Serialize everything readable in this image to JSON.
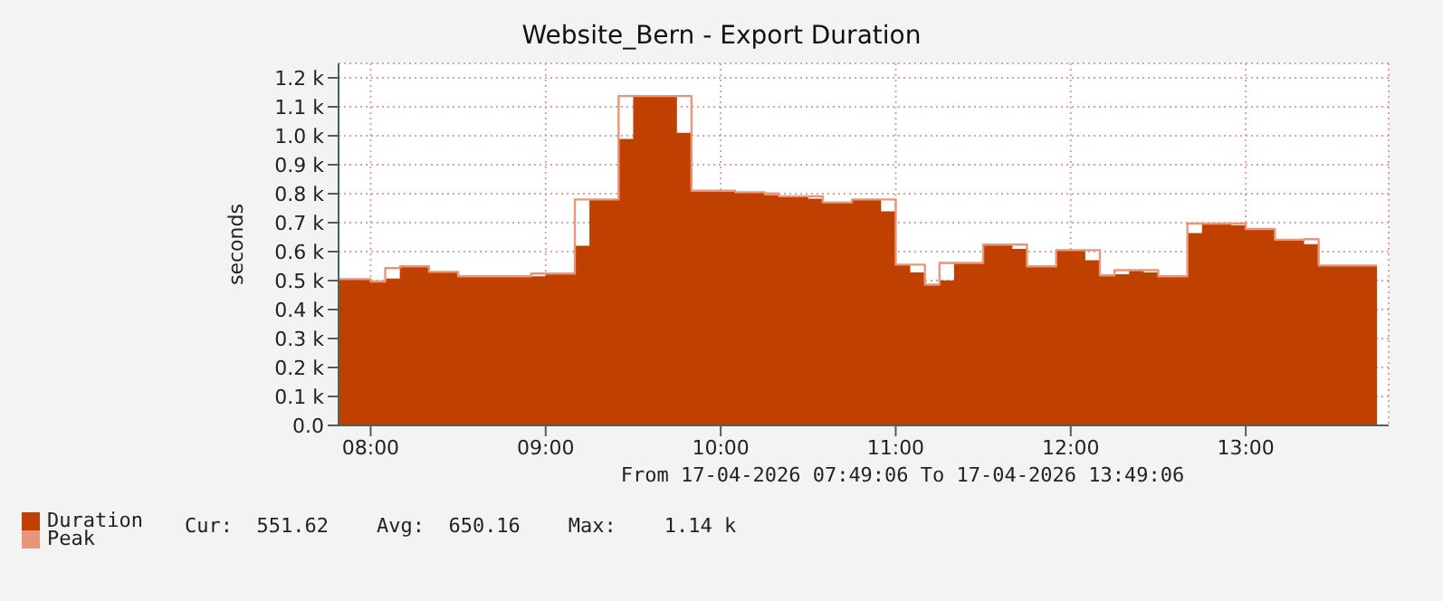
{
  "chart_data": {
    "type": "area",
    "title": "Website_Bern - Export Duration",
    "ylabel": "seconds",
    "annotations": [
      "From 17-04-2026 07:49:06 To 17-04-2026 13:49:06",
      "Cur:  551.62    Avg:  650.16    Max:    1.14 k"
    ],
    "x": [
      "2026-04-17T07:49",
      "2026-04-17T08:00",
      "2026-04-17T08:05",
      "2026-04-17T08:10",
      "2026-04-17T08:15",
      "2026-04-17T08:20",
      "2026-04-17T08:25",
      "2026-04-17T08:30",
      "2026-04-17T08:35",
      "2026-04-17T08:40",
      "2026-04-17T08:45",
      "2026-04-17T08:50",
      "2026-04-17T08:55",
      "2026-04-17T09:00",
      "2026-04-17T09:05",
      "2026-04-17T09:10",
      "2026-04-17T09:15",
      "2026-04-17T09:20",
      "2026-04-17T09:25",
      "2026-04-17T09:30",
      "2026-04-17T09:35",
      "2026-04-17T09:40",
      "2026-04-17T09:45",
      "2026-04-17T09:50",
      "2026-04-17T09:55",
      "2026-04-17T10:00",
      "2026-04-17T10:05",
      "2026-04-17T10:10",
      "2026-04-17T10:15",
      "2026-04-17T10:20",
      "2026-04-17T10:25",
      "2026-04-17T10:30",
      "2026-04-17T10:35",
      "2026-04-17T10:40",
      "2026-04-17T10:45",
      "2026-04-17T10:50",
      "2026-04-17T10:55",
      "2026-04-17T11:00",
      "2026-04-17T11:05",
      "2026-04-17T11:10",
      "2026-04-17T11:15",
      "2026-04-17T11:20",
      "2026-04-17T11:25",
      "2026-04-17T11:30",
      "2026-04-17T11:35",
      "2026-04-17T11:40",
      "2026-04-17T11:45",
      "2026-04-17T11:50",
      "2026-04-17T11:55",
      "2026-04-17T12:00",
      "2026-04-17T12:05",
      "2026-04-17T12:10",
      "2026-04-17T12:15",
      "2026-04-17T12:20",
      "2026-04-17T12:25",
      "2026-04-17T12:30",
      "2026-04-17T12:35",
      "2026-04-17T12:40",
      "2026-04-17T12:45",
      "2026-04-17T12:50",
      "2026-04-17T12:55",
      "2026-04-17T13:00",
      "2026-04-17T13:05",
      "2026-04-17T13:10",
      "2026-04-17T13:15",
      "2026-04-17T13:20",
      "2026-04-17T13:25",
      "2026-04-17T13:30",
      "2026-04-17T13:35",
      "2026-04-17T13:40",
      "2026-04-17T13:45"
    ],
    "series": [
      {
        "name": "Duration",
        "color": "#c04000",
        "values": [
          503,
          497,
          507,
          549,
          549,
          530,
          530,
          515,
          515,
          515,
          515,
          515,
          515,
          524,
          524,
          620,
          780,
          780,
          989,
          1135,
          1135,
          1135,
          1010,
          810,
          810,
          810,
          803,
          803,
          795,
          791,
          791,
          783,
          770,
          770,
          778,
          778,
          739,
          555,
          528,
          486,
          501,
          561,
          561,
          624,
          624,
          609,
          549,
          549,
          605,
          605,
          570,
          518,
          522,
          534,
          528,
          515,
          515,
          664,
          697,
          697,
          691,
          678,
          678,
          641,
          641,
          626,
          552,
          552,
          552,
          552,
          552
        ]
      },
      {
        "name": "Peak",
        "type": "step",
        "color": "#e8957a",
        "values": [
          505,
          497,
          543,
          549,
          549,
          530,
          530,
          515,
          515,
          515,
          515,
          515,
          524,
          524,
          524,
          780,
          780,
          780,
          1137,
          1137,
          1137,
          1137,
          1137,
          810,
          810,
          810,
          805,
          805,
          801,
          791,
          791,
          791,
          770,
          770,
          780,
          780,
          780,
          555,
          555,
          486,
          561,
          561,
          561,
          624,
          624,
          624,
          549,
          549,
          605,
          605,
          605,
          518,
          536,
          536,
          536,
          515,
          515,
          697,
          697,
          697,
          697,
          678,
          678,
          641,
          641,
          643,
          552,
          552,
          552,
          552,
          552
        ]
      }
    ],
    "xlim": [
      "2026-04-17T07:49",
      "2026-04-17T13:49"
    ],
    "xticks": [
      {
        "value": "2026-04-17T08:00",
        "label": "08:00"
      },
      {
        "value": "2026-04-17T09:00",
        "label": "09:00"
      },
      {
        "value": "2026-04-17T10:00",
        "label": "10:00"
      },
      {
        "value": "2026-04-17T11:00",
        "label": "11:00"
      },
      {
        "value": "2026-04-17T12:00",
        "label": "12:00"
      },
      {
        "value": "2026-04-17T13:00",
        "label": "13:00"
      }
    ],
    "ylim": [
      0,
      1250
    ],
    "yticks": [
      {
        "value": 0,
        "label": "0.0"
      },
      {
        "value": 100,
        "label": "0.1 k"
      },
      {
        "value": 200,
        "label": "0.2 k"
      },
      {
        "value": 300,
        "label": "0.3 k"
      },
      {
        "value": 400,
        "label": "0.4 k"
      },
      {
        "value": 500,
        "label": "0.5 k"
      },
      {
        "value": 600,
        "label": "0.6 k"
      },
      {
        "value": 700,
        "label": "0.7 k"
      },
      {
        "value": 800,
        "label": "0.8 k"
      },
      {
        "value": 900,
        "label": "0.9 k"
      },
      {
        "value": 1000,
        "label": "1.0 k"
      },
      {
        "value": 1100,
        "label": "1.1 k"
      },
      {
        "value": 1200,
        "label": "1.2 k"
      }
    ],
    "grid": true,
    "legend": "bottom left"
  }
}
